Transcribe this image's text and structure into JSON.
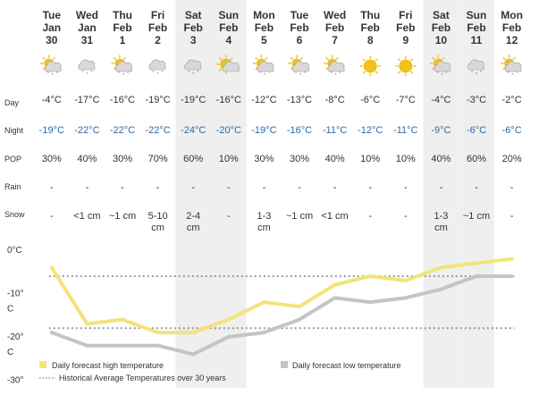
{
  "days": [
    {
      "dow": "Tue",
      "date": "Jan",
      "date2": "30",
      "icon": "sun-cloud-snow-icon",
      "high": "-4°C",
      "low": "-19°C",
      "pop": "30%",
      "rain": "-",
      "snow": "-",
      "weekend": false
    },
    {
      "dow": "Wed",
      "date": "Jan",
      "date2": "31",
      "icon": "cloud-snow-icon",
      "high": "-17°C",
      "low": "-22°C",
      "pop": "40%",
      "rain": "-",
      "snow": "<1 cm",
      "weekend": false
    },
    {
      "dow": "Thu",
      "date": "Feb",
      "date2": "1",
      "icon": "sun-cloud-snow-icon",
      "high": "-16°C",
      "low": "-22°C",
      "pop": "30%",
      "rain": "-",
      "snow": "~1 cm",
      "weekend": false
    },
    {
      "dow": "Fri",
      "date": "Feb",
      "date2": "2",
      "icon": "cloud-snow-icon",
      "high": "-19°C",
      "low": "-22°C",
      "pop": "70%",
      "rain": "-",
      "snow": "5-10 cm",
      "weekend": false
    },
    {
      "dow": "Sat",
      "date": "Feb",
      "date2": "3",
      "icon": "cloud-snow-icon",
      "high": "-19°C",
      "low": "-24°C",
      "pop": "60%",
      "rain": "-",
      "snow": "2-4 cm",
      "weekend": true
    },
    {
      "dow": "Sun",
      "date": "Feb",
      "date2": "4",
      "icon": "sun-cloud-icon",
      "high": "-16°C",
      "low": "-20°C",
      "pop": "10%",
      "rain": "-",
      "snow": "-",
      "weekend": true
    },
    {
      "dow": "Mon",
      "date": "Feb",
      "date2": "5",
      "icon": "sun-cloud-snow-icon",
      "high": "-12°C",
      "low": "-19°C",
      "pop": "30%",
      "rain": "-",
      "snow": "1-3 cm",
      "weekend": false
    },
    {
      "dow": "Tue",
      "date": "Feb",
      "date2": "6",
      "icon": "sun-cloud-snow-icon",
      "high": "-13°C",
      "low": "-16°C",
      "pop": "30%",
      "rain": "-",
      "snow": "~1 cm",
      "weekend": false
    },
    {
      "dow": "Wed",
      "date": "Feb",
      "date2": "7",
      "icon": "sun-cloud-snow-icon",
      "high": "-8°C",
      "low": "-11°C",
      "pop": "40%",
      "rain": "-",
      "snow": "<1 cm",
      "weekend": false
    },
    {
      "dow": "Thu",
      "date": "Feb",
      "date2": "8",
      "icon": "sun-icon",
      "high": "-6°C",
      "low": "-12°C",
      "pop": "10%",
      "rain": "-",
      "snow": "-",
      "weekend": false
    },
    {
      "dow": "Fri",
      "date": "Feb",
      "date2": "9",
      "icon": "sun-icon",
      "high": "-7°C",
      "low": "-11°C",
      "pop": "10%",
      "rain": "-",
      "snow": "-",
      "weekend": false
    },
    {
      "dow": "Sat",
      "date": "Feb",
      "date2": "10",
      "icon": "sun-cloud-snow-icon",
      "high": "-4°C",
      "low": "-9°C",
      "pop": "40%",
      "rain": "-",
      "snow": "1-3 cm",
      "weekend": true
    },
    {
      "dow": "Sun",
      "date": "Feb",
      "date2": "11",
      "icon": "cloud-snow-icon",
      "high": "-3°C",
      "low": "-6°C",
      "pop": "60%",
      "rain": "-",
      "snow": "~1 cm",
      "weekend": true
    },
    {
      "dow": "Mon",
      "date": "Feb",
      "date2": "12",
      "icon": "sun-cloud-snow-icon",
      "high": "-2°C",
      "low": "-6°C",
      "pop": "20%",
      "rain": "-",
      "snow": "-",
      "weekend": false
    }
  ],
  "row_labels": {
    "day": "Day",
    "night": "Night",
    "pop": "POP",
    "rain": "Rain",
    "snow": "Snow"
  },
  "colors": {
    "high": "#f3e37a",
    "low": "#c4c4c4",
    "average": "#999999",
    "night_text": "#2a6aa6",
    "weekend_bg": "#efefef"
  },
  "chart_data": {
    "type": "line",
    "x": [
      "Tue Jan 30",
      "Wed Jan 31",
      "Thu Feb 1",
      "Fri Feb 2",
      "Sat Feb 3",
      "Sun Feb 4",
      "Mon Feb 5",
      "Tue Feb 6",
      "Wed Feb 7",
      "Thu Feb 8",
      "Fri Feb 9",
      "Sat Feb 10",
      "Sun Feb 11",
      "Mon Feb 12"
    ],
    "series": [
      {
        "name": "Daily forecast high temperature",
        "values": [
          -4,
          -17,
          -16,
          -19,
          -19,
          -16,
          -12,
          -13,
          -8,
          -6,
          -7,
          -4,
          -3,
          -2
        ]
      },
      {
        "name": "Daily forecast low temperature",
        "values": [
          -19,
          -22,
          -22,
          -22,
          -24,
          -20,
          -19,
          -16,
          -11,
          -12,
          -11,
          -9,
          -6,
          -6
        ]
      }
    ],
    "averages": {
      "name": "Historical Average Temperatures over 30 years",
      "high": -6,
      "low": -18
    },
    "ylim": [
      -30,
      0
    ],
    "yticks": [
      {
        "value": 0,
        "label": "0°C"
      },
      {
        "value": -10,
        "label": "-10°",
        "label2": "C"
      },
      {
        "value": -20,
        "label": "-20°",
        "label2": "C"
      },
      {
        "value": -30,
        "label": "-30°"
      }
    ],
    "legend": [
      {
        "label": "Daily forecast high temperature",
        "color": "#f3e37a",
        "kind": "box"
      },
      {
        "label": "Daily forecast low temperature",
        "color": "#c4c4c4",
        "kind": "box"
      },
      {
        "label": "Historical Average Temperatures over 30 years",
        "color": "#999999",
        "kind": "dotted"
      }
    ],
    "legend_position": "bottom",
    "grid": false
  }
}
